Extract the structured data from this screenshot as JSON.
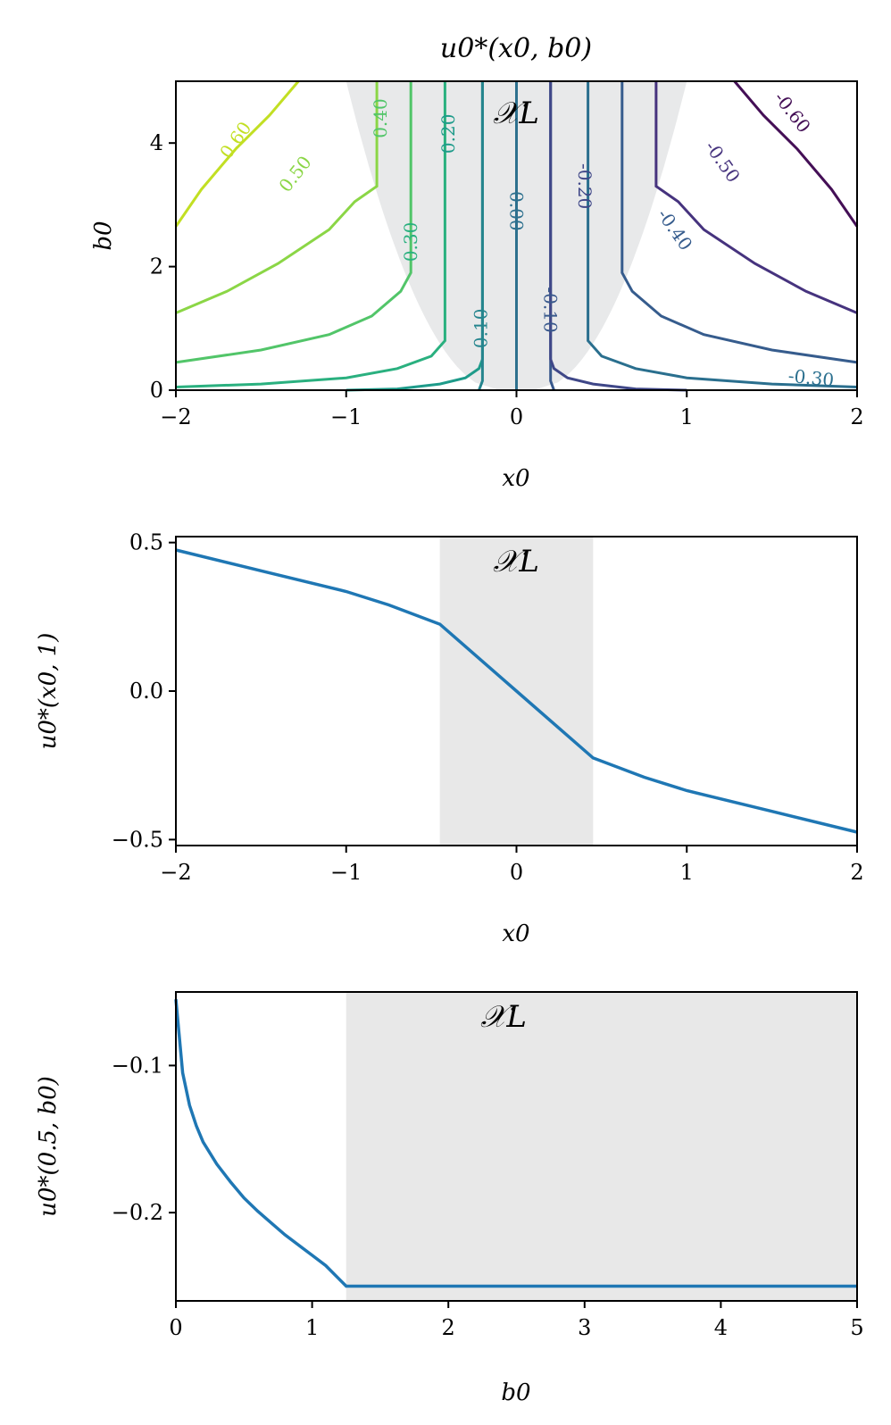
{
  "region_label": "𝒳L",
  "chart_data": [
    {
      "type": "contour",
      "title": "u0*(x0, b0)",
      "xlabel": "x0",
      "ylabel": "b0",
      "xlim": [
        -2,
        2
      ],
      "ylim": [
        0,
        5
      ],
      "xticks": [
        "−2",
        "−1",
        "0",
        "1",
        "2"
      ],
      "yticks": [
        "0",
        "2",
        "4"
      ],
      "shaded_region": {
        "label": "𝒳L",
        "x_at_b0_0": [
          -0.1,
          0.1
        ],
        "x_at_b0_5": [
          -1.0,
          1.0
        ]
      },
      "levels": [
        {
          "label": "0.60",
          "value": 0.6,
          "color": "#c2df23",
          "points": [
            [
              -2.0,
              2.65
            ],
            [
              -1.85,
              3.25
            ],
            [
              -1.65,
              3.9
            ],
            [
              -1.45,
              4.45
            ],
            [
              -1.28,
              5.0
            ]
          ]
        },
        {
          "label": "0.50",
          "value": 0.5,
          "color": "#8bd646",
          "points": [
            [
              -2.0,
              1.25
            ],
            [
              -1.7,
              1.6
            ],
            [
              -1.4,
              2.05
            ],
            [
              -1.1,
              2.6
            ],
            [
              -0.95,
              3.05
            ],
            [
              -0.82,
              3.3
            ],
            [
              -0.82,
              5.0
            ]
          ]
        },
        {
          "label": "0.40",
          "value": 0.4,
          "color": "#52c569",
          "points": [
            [
              -2.0,
              0.45
            ],
            [
              -1.5,
              0.65
            ],
            [
              -1.1,
              0.9
            ],
            [
              -0.85,
              1.2
            ],
            [
              -0.68,
              1.6
            ],
            [
              -0.62,
              1.9
            ],
            [
              -0.62,
              5.0
            ]
          ]
        },
        {
          "label": "0.30",
          "value": 0.3,
          "color": "#2ab07f",
          "points": [
            [
              -2.0,
              0.05
            ],
            [
              -1.5,
              0.1
            ],
            [
              -1.0,
              0.2
            ],
            [
              -0.7,
              0.35
            ],
            [
              -0.5,
              0.55
            ],
            [
              -0.42,
              0.8
            ],
            [
              -0.42,
              5.0
            ]
          ]
        },
        {
          "label": "0.20",
          "value": 0.2,
          "color": "#1e9b8a",
          "points": [
            [
              -1.0,
              0.0
            ],
            [
              -0.7,
              0.02
            ],
            [
              -0.45,
              0.1
            ],
            [
              -0.3,
              0.2
            ],
            [
              -0.22,
              0.35
            ],
            [
              -0.2,
              0.5
            ],
            [
              -0.2,
              5.0
            ]
          ]
        },
        {
          "label": "0.10",
          "value": 0.1,
          "color": "#25858e",
          "points": [
            [
              -0.22,
              0.0
            ],
            [
              -0.2,
              0.15
            ],
            [
              -0.2,
              5.0
            ]
          ]
        },
        {
          "label": "0.00",
          "value": 0.0,
          "color": "#2d708e",
          "points": [
            [
              0.0,
              0.0
            ],
            [
              0.0,
              5.0
            ]
          ]
        },
        {
          "label": "-0.10",
          "value": -0.1,
          "color": "#38588c",
          "points": [
            [
              0.22,
              0.0
            ],
            [
              0.2,
              0.15
            ],
            [
              0.2,
              5.0
            ]
          ]
        },
        {
          "label": "-0.20",
          "value": -0.2,
          "color": "#3f4788",
          "points": [
            [
              1.0,
              0.0
            ],
            [
              0.7,
              0.02
            ],
            [
              0.45,
              0.1
            ],
            [
              0.3,
              0.2
            ],
            [
              0.22,
              0.35
            ],
            [
              0.2,
              0.5
            ],
            [
              0.2,
              5.0
            ]
          ]
        },
        {
          "label": "-0.30",
          "value": -0.3,
          "color": "#2a6f8e",
          "points": [
            [
              2.0,
              0.05
            ],
            [
              1.5,
              0.1
            ],
            [
              1.0,
              0.2
            ],
            [
              0.7,
              0.35
            ],
            [
              0.5,
              0.55
            ],
            [
              0.42,
              0.8
            ],
            [
              0.42,
              5.0
            ]
          ]
        },
        {
          "label": "-0.40",
          "value": -0.4,
          "color": "#365c8d",
          "points": [
            [
              2.0,
              0.45
            ],
            [
              1.5,
              0.65
            ],
            [
              1.1,
              0.9
            ],
            [
              0.85,
              1.2
            ],
            [
              0.68,
              1.6
            ],
            [
              0.62,
              1.9
            ],
            [
              0.62,
              5.0
            ]
          ]
        },
        {
          "label": "-0.50",
          "value": -0.5,
          "color": "#46337e",
          "points": [
            [
              2.0,
              1.25
            ],
            [
              1.7,
              1.6
            ],
            [
              1.4,
              2.05
            ],
            [
              1.1,
              2.6
            ],
            [
              0.95,
              3.05
            ],
            [
              0.82,
              3.3
            ],
            [
              0.82,
              5.0
            ]
          ]
        },
        {
          "label": "-0.60",
          "value": -0.6,
          "color": "#440f56",
          "points": [
            [
              2.0,
              2.65
            ],
            [
              1.85,
              3.25
            ],
            [
              1.65,
              3.9
            ],
            [
              1.45,
              4.45
            ],
            [
              1.28,
              5.0
            ]
          ]
        }
      ]
    },
    {
      "type": "line",
      "xlabel": "x0",
      "ylabel": "u0*(x0, 1)",
      "xlim": [
        -2,
        2
      ],
      "ylim": [
        -0.52,
        0.52
      ],
      "xticks": [
        "−2",
        "−1",
        "0",
        "1",
        "2"
      ],
      "yticks": [
        "0.5",
        "0.0",
        "−0.5"
      ],
      "shaded_region": {
        "label": "𝒳L",
        "x": [
          -0.45,
          0.45
        ]
      },
      "series": [
        {
          "color": "#1f77b4",
          "x": [
            -2.0,
            -1.5,
            -1.0,
            -0.75,
            -0.45,
            0.0,
            0.45,
            0.75,
            1.0,
            1.5,
            2.0
          ],
          "y": [
            0.475,
            0.405,
            0.335,
            0.29,
            0.225,
            0.0,
            -0.225,
            -0.29,
            -0.335,
            -0.405,
            -0.475
          ]
        }
      ]
    },
    {
      "type": "line",
      "xlabel": "b0",
      "ylabel": "u0*(0.5, b0)",
      "xlim": [
        0,
        5
      ],
      "ylim": [
        -0.26,
        -0.05
      ],
      "xticks": [
        "0",
        "1",
        "2",
        "3",
        "4",
        "5"
      ],
      "yticks": [
        "−0.1",
        "−0.2"
      ],
      "shaded_region": {
        "label": "𝒳L",
        "x": [
          1.25,
          5.0
        ]
      },
      "series": [
        {
          "color": "#1f77b4",
          "x": [
            0.0,
            0.05,
            0.1,
            0.15,
            0.2,
            0.3,
            0.4,
            0.5,
            0.6,
            0.7,
            0.8,
            0.9,
            1.0,
            1.1,
            1.25,
            2.0,
            3.0,
            4.0,
            5.0
          ],
          "y": [
            -0.055,
            -0.105,
            -0.127,
            -0.141,
            -0.152,
            -0.167,
            -0.179,
            -0.19,
            -0.199,
            -0.207,
            -0.215,
            -0.222,
            -0.229,
            -0.236,
            -0.25,
            -0.25,
            -0.25,
            -0.25,
            -0.25
          ]
        }
      ]
    }
  ]
}
